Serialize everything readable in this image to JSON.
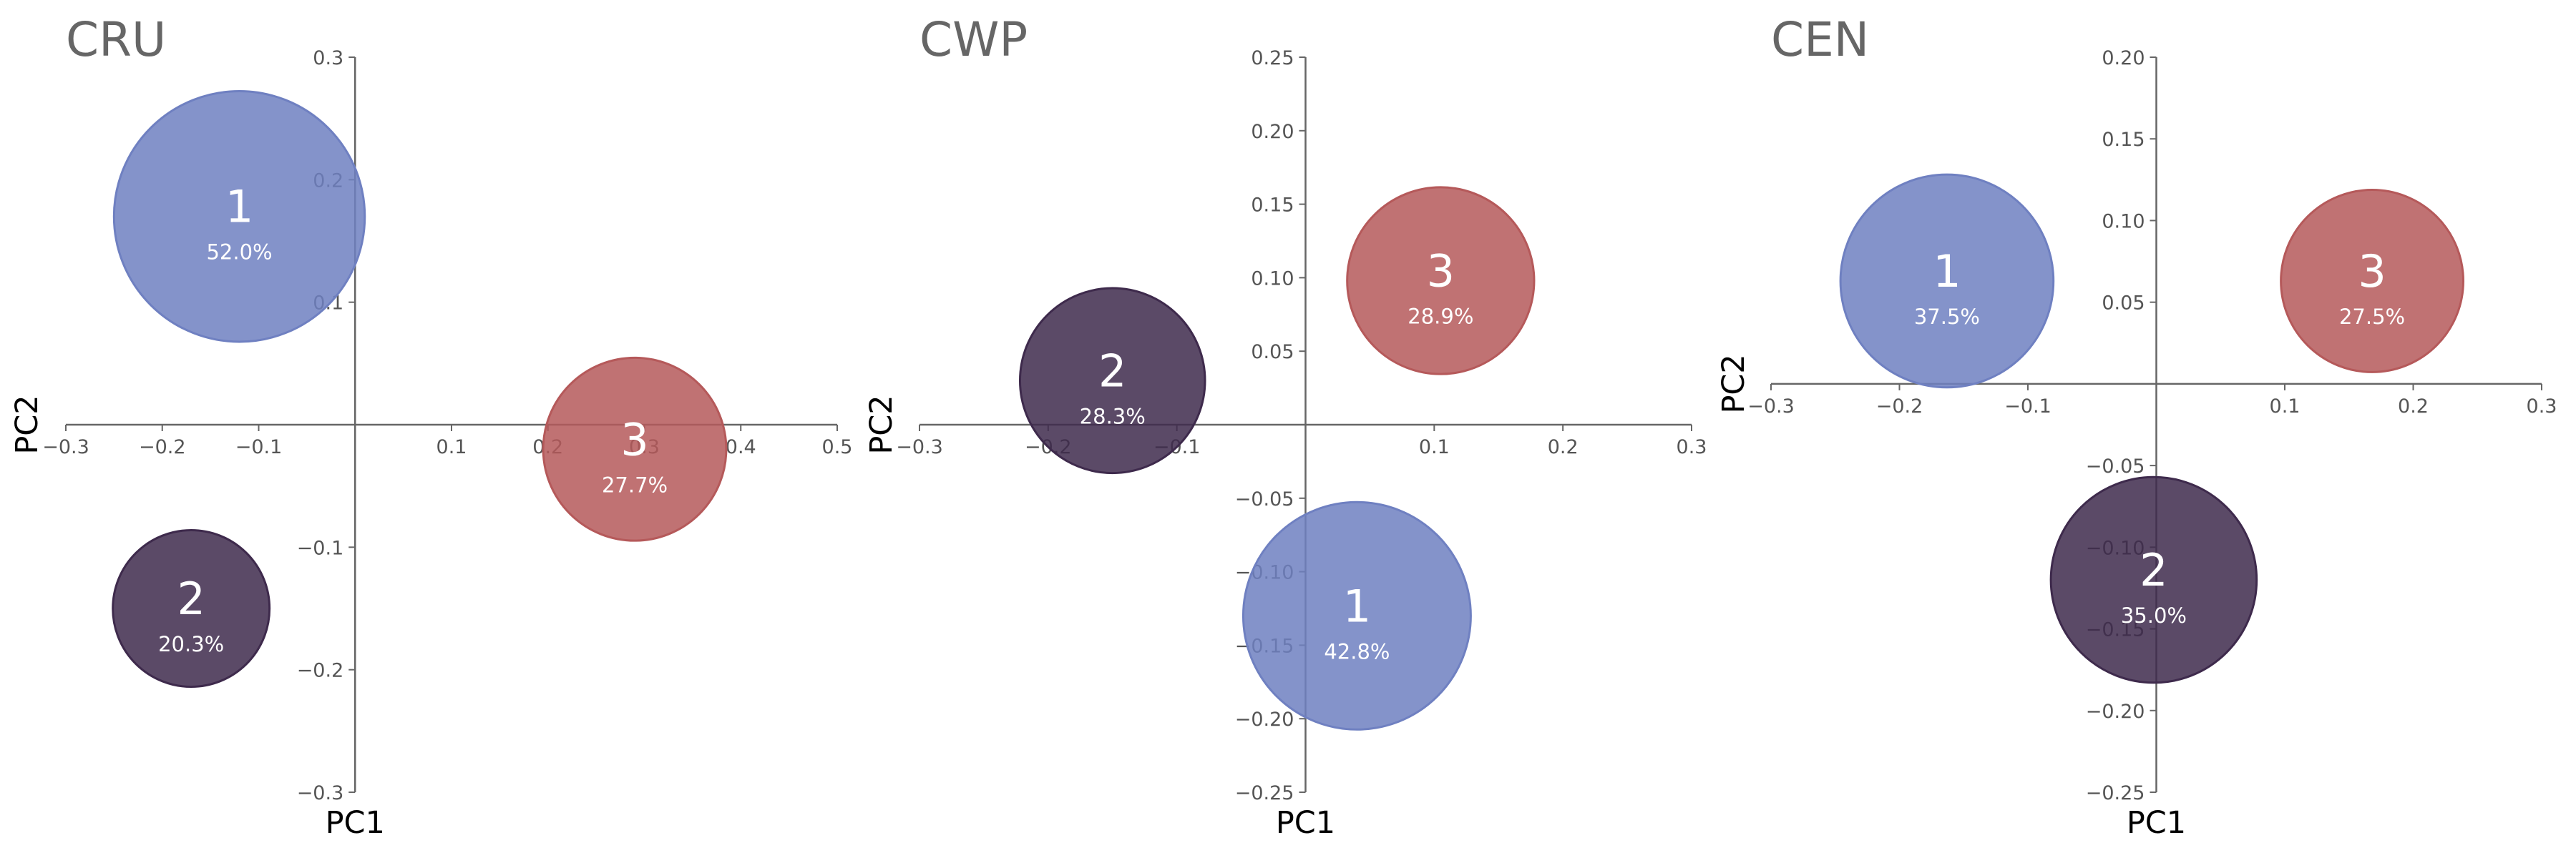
{
  "colors": {
    "cluster_1": "#6f80c1",
    "cluster_2": "#3e2a4c",
    "cluster_3": "#b5595a",
    "axis": "#666666"
  },
  "chart_data": [
    {
      "type": "scatter",
      "title": "CRU",
      "xlabel": "PC1",
      "ylabel": "PC2",
      "xlim": [
        -0.3,
        0.5
      ],
      "ylim": [
        -0.3,
        0.3
      ],
      "xticks": [
        -0.3,
        -0.2,
        -0.1,
        0.1,
        0.2,
        0.3,
        0.4,
        0.5
      ],
      "xtick_labels": [
        "−0.3",
        "−0.2",
        "−0.1",
        "0.1",
        "0.2",
        "0.3",
        "0.4",
        "0.5"
      ],
      "yticks": [
        -0.3,
        -0.2,
        -0.1,
        0.1,
        0.2,
        0.3
      ],
      "ytick_labels": [
        "−0.3",
        "−0.2",
        "−0.1",
        "0.1",
        "0.2",
        "0.3"
      ],
      "grid": false,
      "points": [
        {
          "label": "1",
          "x": -0.12,
          "y": 0.17,
          "share_text": "52.0%",
          "share": 52.0,
          "color": "#6f80c1"
        },
        {
          "label": "2",
          "x": -0.17,
          "y": -0.15,
          "share_text": "20.3%",
          "share": 20.3,
          "color": "#3e2a4c"
        },
        {
          "label": "3",
          "x": 0.29,
          "y": -0.02,
          "share_text": "27.7%",
          "share": 27.7,
          "color": "#b5595a"
        }
      ]
    },
    {
      "type": "scatter",
      "title": "CWP",
      "xlabel": "PC1",
      "ylabel": "PC2",
      "xlim": [
        -0.3,
        0.3
      ],
      "ylim": [
        -0.25,
        0.25
      ],
      "xticks": [
        -0.3,
        -0.2,
        -0.1,
        0.1,
        0.2,
        0.3
      ],
      "xtick_labels": [
        "−0.3",
        "−0.2",
        "−0.1",
        "0.1",
        "0.2",
        "0.3"
      ],
      "yticks": [
        -0.25,
        -0.2,
        -0.15,
        -0.1,
        -0.05,
        0.05,
        0.1,
        0.15,
        0.2,
        0.25
      ],
      "ytick_labels": [
        "−0.25",
        "−0.20",
        "−0.15",
        "−0.10",
        "−0.05",
        "0.05",
        "0.10",
        "0.15",
        "0.20",
        "0.25"
      ],
      "grid": false,
      "points": [
        {
          "label": "1",
          "x": 0.04,
          "y": -0.13,
          "share_text": "42.8%",
          "share": 42.8,
          "color": "#6f80c1"
        },
        {
          "label": "2",
          "x": -0.15,
          "y": 0.03,
          "share_text": "28.3%",
          "share": 28.3,
          "color": "#3e2a4c"
        },
        {
          "label": "3",
          "x": 0.105,
          "y": 0.098,
          "share_text": "28.9%",
          "share": 28.9,
          "color": "#b5595a"
        }
      ]
    },
    {
      "type": "scatter",
      "title": "CEN",
      "xlabel": "PC1",
      "ylabel": "PC2",
      "xlim": [
        -0.3,
        0.3
      ],
      "ylim": [
        -0.25,
        0.2
      ],
      "xticks": [
        -0.3,
        -0.2,
        -0.1,
        0.1,
        0.2,
        0.3
      ],
      "xtick_labels": [
        "−0.3",
        "−0.2",
        "−0.1",
        "0.1",
        "0.2",
        "0.3"
      ],
      "yticks": [
        -0.25,
        -0.2,
        -0.15,
        -0.1,
        -0.05,
        0.05,
        0.1,
        0.15,
        0.2
      ],
      "ytick_labels": [
        "−0.25",
        "−0.20",
        "−0.15",
        "−0.10",
        "−0.05",
        "0.05",
        "0.10",
        "0.15",
        "0.20"
      ],
      "grid": false,
      "points": [
        {
          "label": "1",
          "x": -0.163,
          "y": 0.063,
          "share_text": "37.5%",
          "share": 37.5,
          "color": "#6f80c1"
        },
        {
          "label": "2",
          "x": -0.002,
          "y": -0.12,
          "share_text": "35.0%",
          "share": 35.0,
          "color": "#3e2a4c"
        },
        {
          "label": "3",
          "x": 0.168,
          "y": 0.063,
          "share_text": "27.5%",
          "share": 27.5,
          "color": "#b5595a"
        }
      ]
    }
  ]
}
